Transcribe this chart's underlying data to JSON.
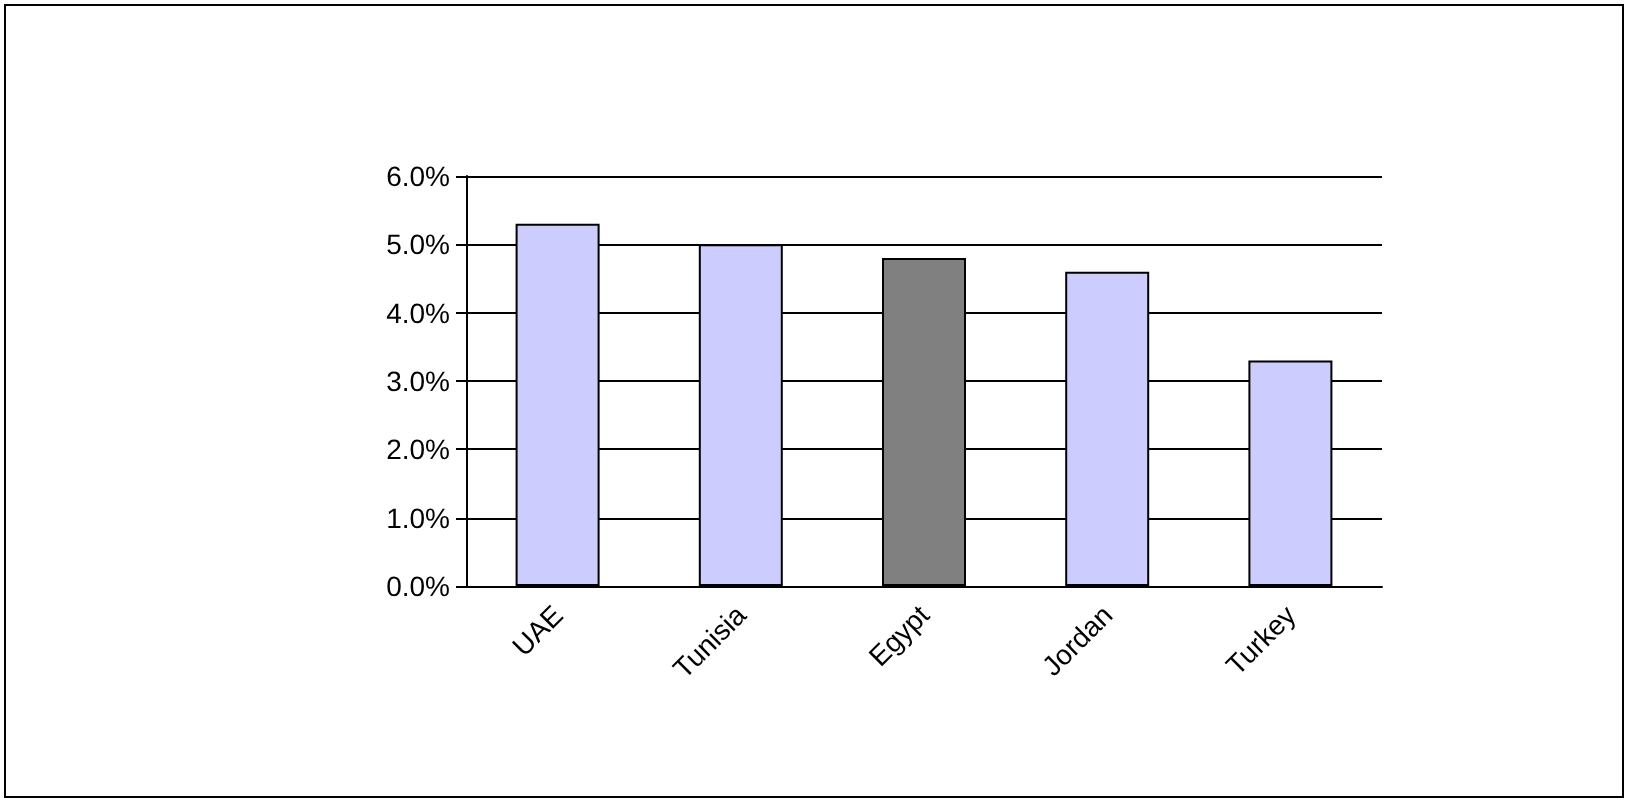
{
  "chart_data": {
    "type": "bar",
    "categories": [
      "UAE",
      "Tunisia",
      "Egypt",
      "Jordan",
      "Turkey"
    ],
    "values": [
      5.3,
      5.0,
      4.8,
      4.6,
      3.3
    ],
    "colors": [
      "#ccccff",
      "#ccccff",
      "#808080",
      "#ccccff",
      "#ccccff"
    ],
    "ylim": [
      0,
      6
    ],
    "yticks": [
      {
        "value": 0,
        "label": "0.0%"
      },
      {
        "value": 1,
        "label": "1.0%"
      },
      {
        "value": 2,
        "label": "2.0%"
      },
      {
        "value": 3,
        "label": "3.0%"
      },
      {
        "value": 4,
        "label": "4.0%"
      },
      {
        "value": 5,
        "label": "5.0%"
      },
      {
        "value": 6,
        "label": "6.0%"
      }
    ],
    "grid": "y"
  }
}
